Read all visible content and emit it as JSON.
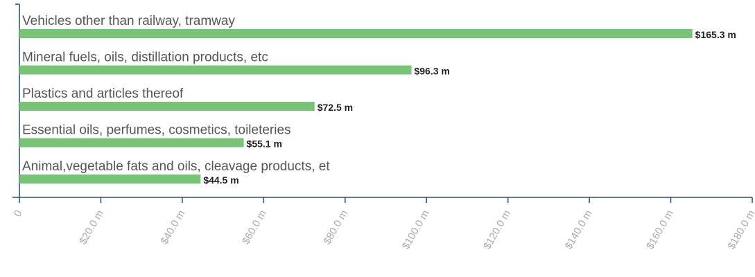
{
  "chart_data": {
    "type": "bar",
    "orientation": "horizontal",
    "categories": [
      "Vehicles other than railway, tramway",
      "Mineral fuels, oils, distillation products, etc",
      "Plastics and articles thereof",
      "Essential oils, perfumes, cosmetics, toileteries",
      "Animal,vegetable fats and oils, cleavage products, et"
    ],
    "values": [
      165.3,
      96.3,
      72.5,
      55.1,
      44.5
    ],
    "value_labels": [
      "$165.3 m",
      "$96.3 m",
      "$72.5 m",
      "$55.1 m",
      "$44.5 m"
    ],
    "color": "#77c477",
    "xlim": [
      0,
      180
    ],
    "xticks": [
      0,
      {
        "value": 20,
        "label": "$20.0 m"
      },
      {
        "value": 40,
        "label": "$40.0 m"
      },
      {
        "value": 60,
        "label": "$60.0 m"
      },
      {
        "value": 80,
        "label": "$80.0 m"
      },
      {
        "value": 100,
        "label": "$100.0 m"
      },
      {
        "value": 120,
        "label": "$120.0 m"
      },
      {
        "value": 140,
        "label": "$140.0 m"
      },
      {
        "value": 160,
        "label": "$160.0 m"
      },
      {
        "value": 180,
        "label": "$180.0 m"
      }
    ]
  }
}
